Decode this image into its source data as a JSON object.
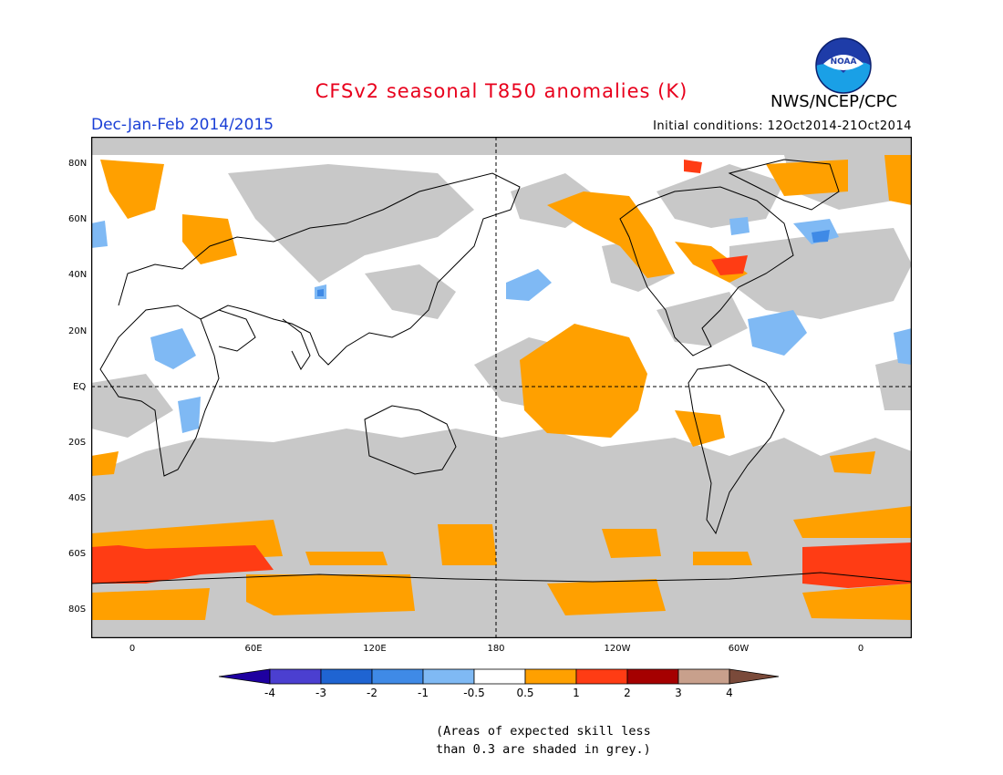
{
  "header": {
    "title": "CFSv2 seasonal T850 anomalies (K)",
    "agency": "NWS/NCEP/CPC",
    "logo_text": "NOAA",
    "season": "Dec-Jan-Feb 2014/2015",
    "initial_conditions": "Initial conditions: 12Oct2014-21Oct2014"
  },
  "map": {
    "projection": "cylindrical equidistant",
    "lat_labels": [
      "80N",
      "60N",
      "40N",
      "20N",
      "EQ",
      "20S",
      "40S",
      "60S",
      "80S"
    ],
    "lon_labels": [
      "0",
      "60E",
      "120E",
      "180",
      "120W",
      "60W",
      "0"
    ],
    "colors": {
      "skill_grey": "#c8c8c8",
      "ocean_white": "#ffffff",
      "coast": "#000000"
    }
  },
  "colorbar": {
    "colors": [
      "#1e00a0",
      "#4b3fd0",
      "#1f64d2",
      "#3f8ae6",
      "#7fb9f4",
      "#ffffff",
      "#ffa000",
      "#ff3c14",
      "#a50000",
      "#c8a08c",
      "#7a4a3a"
    ],
    "labels": [
      "-4",
      "-3",
      "-2",
      "-1",
      "-0.5",
      "0.5",
      "1",
      "2",
      "3",
      "4"
    ]
  },
  "footnote": {
    "line1": "(Areas of expected skill less",
    "line2": "than 0.3 are shaded in grey.)"
  }
}
